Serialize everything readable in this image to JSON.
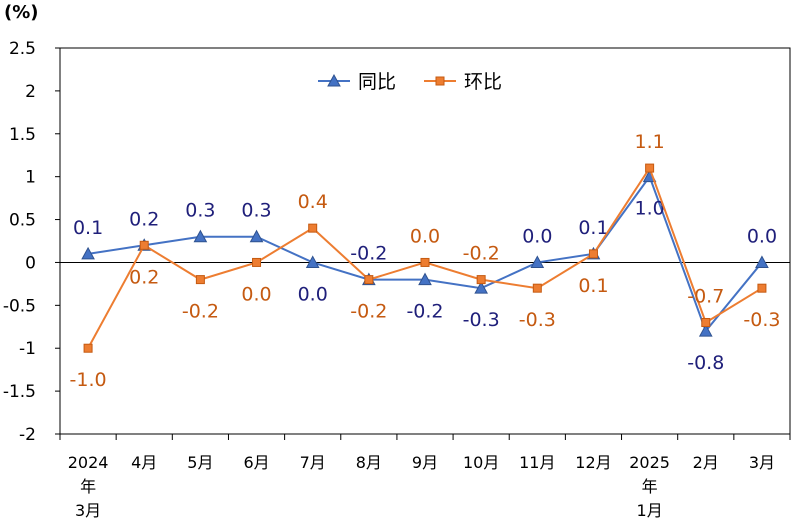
{
  "chart_data": {
    "type": "line",
    "unit_label": "(%)",
    "categories": [
      [
        "2024",
        "年",
        "3月"
      ],
      [
        "4月"
      ],
      [
        "5月"
      ],
      [
        "6月"
      ],
      [
        "7月"
      ],
      [
        "8月"
      ],
      [
        "9月"
      ],
      [
        "10月"
      ],
      [
        "11月"
      ],
      [
        "12月"
      ],
      [
        "2025",
        "年",
        "1月"
      ],
      [
        "2月"
      ],
      [
        "3月"
      ]
    ],
    "ylim": [
      -2,
      2.5
    ],
    "yticks": [
      "2.5",
      "2",
      "1.5",
      "1",
      "0.5",
      "0",
      "-0.5",
      "-1",
      "-1.5",
      "-2"
    ],
    "ytick_values": [
      2.5,
      2,
      1.5,
      1,
      0.5,
      0,
      -0.5,
      -1,
      -1.5,
      -2
    ],
    "grid": false,
    "legend_position": "top-center",
    "series": [
      {
        "name": "同比",
        "color": "#4472C4",
        "label_color": "#1F1F7A",
        "marker": "triangle",
        "values": [
          0.1,
          0.2,
          0.3,
          0.3,
          0.0,
          -0.2,
          -0.2,
          -0.3,
          0.0,
          0.1,
          1.0,
          -0.8,
          0.0
        ],
        "labels": [
          "0.1",
          "0.2",
          "0.3",
          "0.3",
          "0.0",
          "-0.2",
          "-0.2",
          "-0.3",
          "0.0",
          "0.1",
          "1.0",
          "-0.8",
          "0.0"
        ],
        "label_side": [
          "above",
          "above",
          "above",
          "above",
          "below",
          "above",
          "below",
          "below",
          "above",
          "above",
          "below",
          "below",
          "above"
        ]
      },
      {
        "name": "环比",
        "color": "#ED7D31",
        "label_color": "#C55A11",
        "marker": "square",
        "values": [
          -1.0,
          0.2,
          -0.2,
          0.0,
          0.4,
          -0.2,
          0.0,
          -0.2,
          -0.3,
          0.1,
          1.1,
          -0.7,
          -0.3
        ],
        "labels": [
          "-1.0",
          "0.2",
          "-0.2",
          "0.0",
          "0.4",
          "-0.2",
          "0.0",
          "-0.2",
          "-0.3",
          "0.1",
          "1.1",
          "-0.7",
          "-0.3"
        ],
        "label_side": [
          "below",
          "below",
          "below",
          "below",
          "above",
          "below",
          "above",
          "above",
          "below",
          "below",
          "above",
          "above",
          "below"
        ]
      }
    ]
  }
}
